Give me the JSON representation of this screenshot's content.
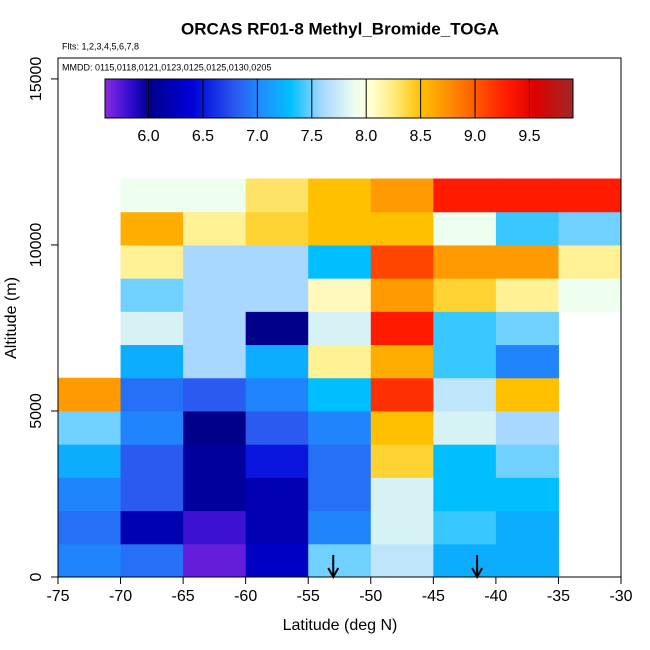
{
  "chart_data": {
    "type": "heatmap",
    "title": "ORCAS RF01-8 Methyl_Bromide_TOGA",
    "subtitle": "Flts: 1,2,3,4,5,6,7,8",
    "annotation": "MMDD: 0115,0118,0121,0123,0125,0125,0130,0205",
    "x_label": "Latitude (deg N)",
    "y_label": "Altitude (m)",
    "xlim": [
      -75,
      -30
    ],
    "xticks": [
      -75,
      -70,
      -65,
      -60,
      -55,
      -50,
      -45,
      -40,
      -35,
      -30
    ],
    "ylim": [
      0,
      15630
    ],
    "yticks": [
      0,
      5000,
      10000,
      15000
    ],
    "xbins": [
      -75,
      -70,
      -65,
      -60,
      -55,
      -50,
      -45,
      -40,
      -35,
      -30
    ],
    "ybins": [
      0,
      1000,
      2000,
      3000,
      4000,
      5000,
      6000,
      7000,
      8000,
      9000,
      10000,
      11000,
      12000
    ],
    "values": [
      [
        7.0,
        6.9,
        5.7,
        6.3,
        7.5,
        7.7,
        7.2,
        7.2,
        null
      ],
      [
        6.9,
        6.2,
        5.8,
        6.2,
        7.0,
        7.8,
        7.4,
        7.2,
        null
      ],
      [
        7.0,
        6.8,
        6.1,
        6.2,
        6.9,
        7.8,
        7.3,
        7.3,
        null
      ],
      [
        7.2,
        6.8,
        6.1,
        6.5,
        6.9,
        8.4,
        7.3,
        7.5,
        null
      ],
      [
        7.5,
        7.0,
        6.0,
        6.8,
        7.0,
        8.5,
        7.8,
        7.6,
        null
      ],
      [
        8.7,
        6.9,
        6.8,
        7.0,
        7.3,
        9.2,
        7.7,
        8.5,
        null
      ],
      [
        null,
        7.2,
        7.6,
        7.2,
        8.2,
        8.6,
        7.4,
        7.0,
        null
      ],
      [
        null,
        7.8,
        7.6,
        6.0,
        7.8,
        9.3,
        7.4,
        7.5,
        null
      ],
      [
        null,
        7.5,
        7.6,
        7.6,
        8.1,
        8.7,
        8.4,
        8.2,
        7.9
      ],
      [
        null,
        8.2,
        7.6,
        7.6,
        7.3,
        9.1,
        8.7,
        8.7,
        8.2
      ],
      [
        null,
        8.6,
        8.2,
        8.4,
        8.5,
        8.5,
        7.9,
        7.4,
        7.5
      ],
      [
        null,
        7.9,
        7.9,
        8.3,
        8.5,
        8.7,
        9.3,
        9.3,
        9.3
      ]
    ],
    "clim": [
      5.6,
      9.9
    ],
    "cticks": [
      {
        "value": 6,
        "label": "6.0"
      },
      6.5,
      {
        "value": 7,
        "label": "7.0"
      },
      7.5,
      {
        "value": 8,
        "label": "8.0"
      },
      8.5,
      {
        "value": 9,
        "label": "9.0"
      },
      9.5
    ],
    "colorscale": [
      {
        "value": 5.6,
        "color": "#8a2be2"
      },
      {
        "value": 5.85,
        "color": "#2a0ad0"
      },
      {
        "value": 6.0,
        "color": "#00008b"
      },
      {
        "value": 6.4,
        "color": "#0000d8"
      },
      {
        "value": 6.8,
        "color": "#2a5af0"
      },
      {
        "value": 7.05,
        "color": "#1e90ff"
      },
      {
        "value": 7.3,
        "color": "#00bfff"
      },
      {
        "value": 7.6,
        "color": "#a8d8ff"
      },
      {
        "value": 7.9,
        "color": "#eefff0"
      },
      {
        "value": 8.05,
        "color": "#ffffd0"
      },
      {
        "value": 8.25,
        "color": "#ffec80"
      },
      {
        "value": 8.5,
        "color": "#ffc000"
      },
      {
        "value": 8.75,
        "color": "#ff9000"
      },
      {
        "value": 9.05,
        "color": "#ff5000"
      },
      {
        "value": 9.3,
        "color": "#ff1a00"
      },
      {
        "value": 9.55,
        "color": "#dd0000"
      },
      {
        "value": 9.9,
        "color": "#a02828"
      }
    ],
    "arrows_x": [
      -53,
      -41.5
    ]
  }
}
